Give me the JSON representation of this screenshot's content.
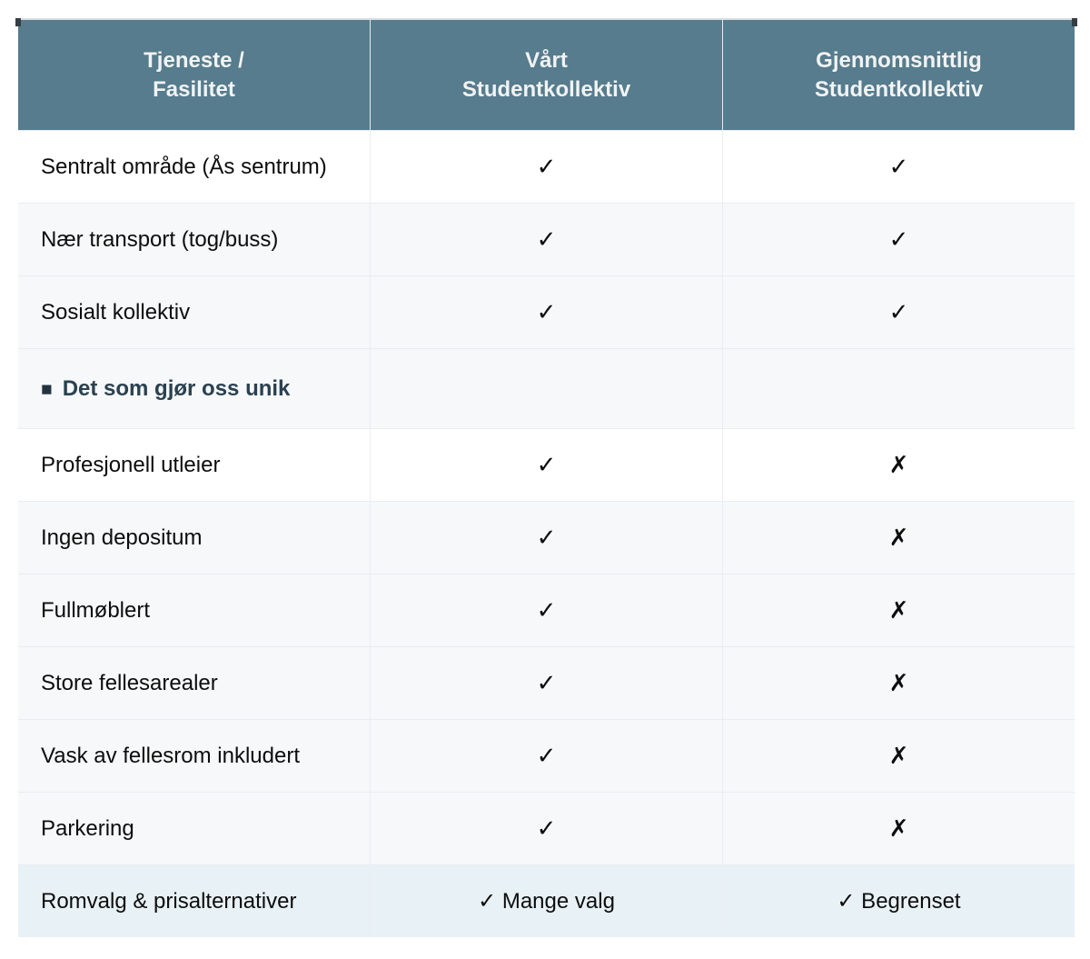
{
  "theme": {
    "header_bg": "#567c8d",
    "header_text": "#f1f3f4",
    "row_white_bg": "#ffffff",
    "row_gray_bg": "#f6f8f9",
    "summary_row_bg": "#e8f1f5",
    "section_text_color": "#2b4150",
    "divider_color": "#e9edf0",
    "check_icon": "check-mark",
    "cross_icon": "ballot-x-mark"
  },
  "table": {
    "headers": [
      "Tjeneste /\nFasilitet",
      "Vårt\nStudentkollektiv",
      "Gjennomsnittlig\nStudentkollektiv"
    ],
    "rows": [
      {
        "label": "Sentralt område (Ås sentrum)",
        "ours": "✓",
        "avg": "✓"
      },
      {
        "label": "Nær transport (tog/buss)",
        "ours": "✓",
        "avg": "✓"
      },
      {
        "label": "Sosialt kollektiv",
        "ours": "✓",
        "avg": "✓"
      },
      {
        "marker": "■",
        "label": "Det som gjør oss unik",
        "ours": "",
        "avg": ""
      },
      {
        "label": "Profesjonell utleier",
        "ours": "✓",
        "avg": "✗"
      },
      {
        "label": "Ingen depositum",
        "ours": "✓",
        "avg": "✗"
      },
      {
        "label": "Fullmøblert",
        "ours": "✓",
        "avg": "✗"
      },
      {
        "label": "Store fellesarealer",
        "ours": "✓",
        "avg": "✗"
      },
      {
        "label": "Vask av fellesrom inkludert",
        "ours": "✓",
        "avg": "✗"
      },
      {
        "label": "Parkering",
        "ours": "✓",
        "avg": "✗"
      },
      {
        "label": "Romvalg & prisalternativer",
        "ours": "✓ Mange valg",
        "avg": "✓ Begrenset"
      }
    ]
  }
}
